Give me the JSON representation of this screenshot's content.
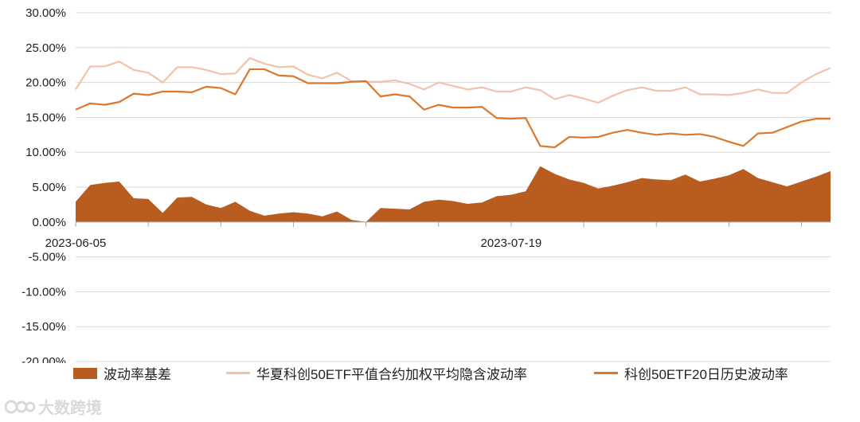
{
  "chart_data": {
    "type": "area",
    "y_ticks": [
      "30.00%",
      "25.00%",
      "20.00%",
      "15.00%",
      "10.00%",
      "5.00%",
      "0.00%",
      "-5.00%",
      "-10.00%",
      "-15.00%",
      "-20.00%"
    ],
    "ylim": [
      -20,
      30
    ],
    "x_tick_labels": [
      {
        "label": "2023-06-05",
        "index": 0
      },
      {
        "label": "2023-07-19",
        "index": 30
      }
    ],
    "grid": "horizontal",
    "legend_position": "bottom",
    "n_points": 53,
    "series": [
      {
        "name": "波动率基差",
        "kind": "area",
        "color": "#b85c20",
        "values": [
          2.9,
          5.3,
          5.6,
          5.8,
          3.4,
          3.3,
          1.3,
          3.5,
          3.6,
          2.5,
          2.0,
          2.9,
          1.6,
          0.9,
          1.2,
          1.4,
          1.2,
          0.8,
          1.5,
          0.3,
          0.0,
          2.0,
          1.9,
          1.8,
          2.9,
          3.2,
          3.0,
          2.6,
          2.8,
          3.7,
          3.9,
          4.4,
          8.0,
          6.9,
          6.1,
          5.6,
          4.8,
          5.2,
          5.7,
          6.3,
          6.1,
          6.0,
          6.8,
          5.8,
          6.2,
          6.7,
          7.6,
          6.3,
          5.7,
          5.1,
          5.8,
          6.5,
          7.3
        ]
      },
      {
        "name": "华夏科创50ETF平值合约加权平均隐含波动率",
        "kind": "line",
        "color": "#f3c2aa",
        "values": [
          19.0,
          22.3,
          22.3,
          23.0,
          21.8,
          21.4,
          20.0,
          22.2,
          22.2,
          21.8,
          21.2,
          21.3,
          23.5,
          22.7,
          22.2,
          22.3,
          21.1,
          20.6,
          21.4,
          20.2,
          20.1,
          20.1,
          20.3,
          19.8,
          19.0,
          20.0,
          19.5,
          19.0,
          19.3,
          18.7,
          18.7,
          19.3,
          18.9,
          17.6,
          18.2,
          17.7,
          17.1,
          18.1,
          18.9,
          19.3,
          18.8,
          18.8,
          19.3,
          18.3,
          18.3,
          18.2,
          18.5,
          19.0,
          18.5,
          18.5,
          20.0,
          21.2,
          22.1
        ]
      },
      {
        "name": "科创50ETF20日历史波动率",
        "kind": "line",
        "color": "#d9782e",
        "values": [
          16.1,
          17.0,
          16.8,
          17.2,
          18.4,
          18.2,
          18.7,
          18.7,
          18.6,
          19.4,
          19.2,
          18.3,
          21.9,
          21.9,
          21.0,
          20.9,
          19.9,
          19.9,
          19.9,
          20.1,
          20.2,
          18.0,
          18.3,
          18.0,
          16.1,
          16.8,
          16.4,
          16.4,
          16.5,
          14.9,
          14.8,
          14.9,
          10.9,
          10.7,
          12.2,
          12.1,
          12.2,
          12.8,
          13.2,
          12.8,
          12.5,
          12.7,
          12.5,
          12.6,
          12.2,
          11.5,
          10.9,
          12.7,
          12.8,
          13.6,
          14.4,
          14.8,
          14.8
        ]
      }
    ]
  },
  "watermark": {
    "text": "大数跨境"
  }
}
